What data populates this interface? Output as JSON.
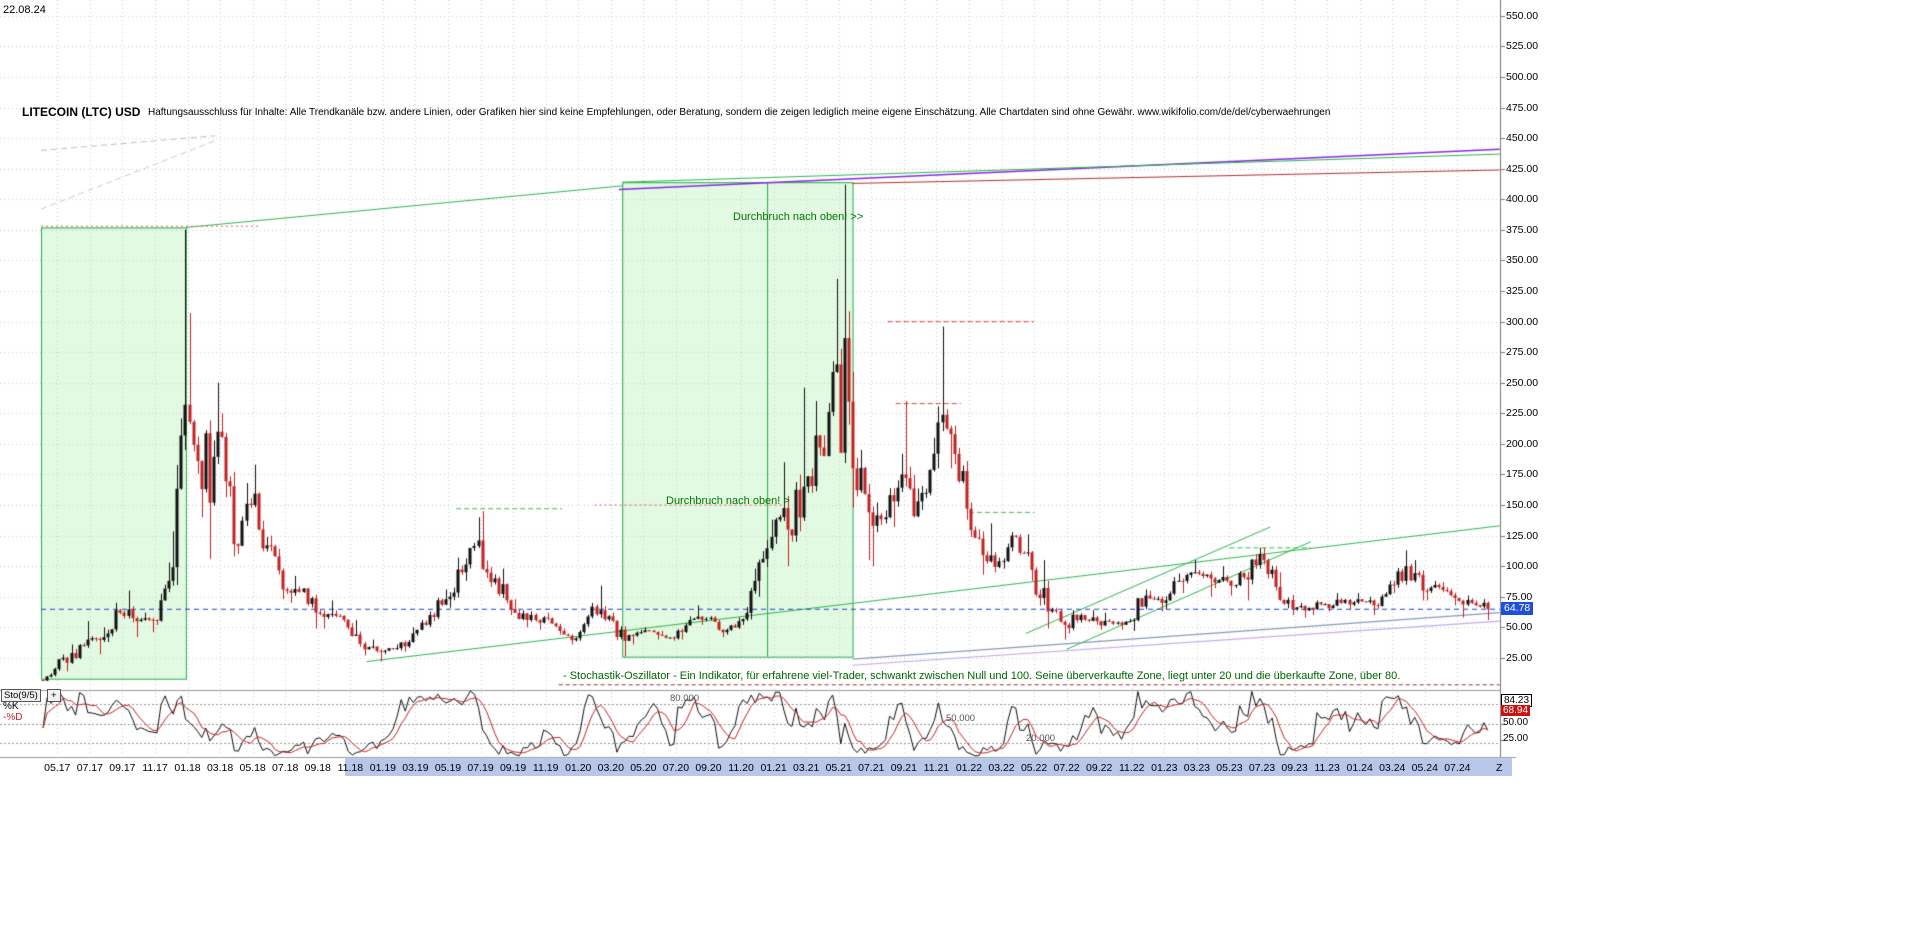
{
  "header": {
    "date": "22.08.24",
    "title": "LITECOIN (LTC) USD",
    "disclaimer": "Haftungsausschluss für Inhalte: Alle Trendkanäle bzw. andere Linien, oder Grafiken hier sind keine Empfehlungen, oder Beratung, sondern die zeigen lediglich meine eigene Einschätzung. Alle Chartdaten sind ohne Gewähr.  www.wikifolio.com/de/del/cyberwaehrungen"
  },
  "price_axis": {
    "current_price": "64.78",
    "ticks": [
      "550.00",
      "525.00",
      "500.00",
      "475.00",
      "450.00",
      "425.00",
      "400.00",
      "375.00",
      "350.00",
      "325.00",
      "300.00",
      "275.00",
      "250.00",
      "225.00",
      "200.00",
      "175.00",
      "150.00",
      "125.00",
      "100.00",
      "75.00",
      "50.00",
      "25.00"
    ]
  },
  "chart_data": {
    "type": "candlestick",
    "symbol": "LITECOIN (LTC) USD",
    "timeframe": "monthly, 2017-04 to 2024-08 (rendered as weekly candles)",
    "month_start": "2017-04",
    "price_range_visible": [
      25,
      550
    ],
    "price_grid_step": 25,
    "current_close": 64.78,
    "z_label": "Z",
    "candle_up_color": "#111111",
    "candle_down_color": "#c22222",
    "ohlc": [
      [
        7,
        17,
        6,
        16
      ],
      [
        16,
        36,
        14,
        29
      ],
      [
        29,
        55,
        24,
        40
      ],
      [
        40,
        50,
        28,
        42
      ],
      [
        42,
        70,
        38,
        62
      ],
      [
        62,
        80,
        42,
        55
      ],
      [
        55,
        62,
        46,
        56
      ],
      [
        56,
        103,
        52,
        88
      ],
      [
        88,
        375,
        84,
        232
      ],
      [
        232,
        307,
        140,
        163
      ],
      [
        163,
        250,
        106,
        210
      ],
      [
        210,
        225,
        108,
        118
      ],
      [
        118,
        168,
        110,
        150
      ],
      [
        150,
        183,
        112,
        117
      ],
      [
        117,
        125,
        73,
        81
      ],
      [
        81,
        92,
        70,
        79
      ],
      [
        79,
        82,
        49,
        62
      ],
      [
        62,
        72,
        49,
        61
      ],
      [
        61,
        64,
        48,
        50
      ],
      [
        50,
        56,
        27,
        32
      ],
      [
        32,
        40,
        22,
        30
      ],
      [
        30,
        36,
        28,
        33
      ],
      [
        33,
        50,
        30,
        45
      ],
      [
        45,
        63,
        43,
        60
      ],
      [
        60,
        81,
        55,
        73
      ],
      [
        73,
        107,
        66,
        95
      ],
      [
        95,
        140,
        88,
        121
      ],
      [
        121,
        145,
        83,
        90
      ],
      [
        90,
        98,
        60,
        65
      ],
      [
        65,
        73,
        50,
        56
      ],
      [
        56,
        63,
        48,
        58
      ],
      [
        58,
        62,
        44,
        47
      ],
      [
        47,
        49,
        36,
        41
      ],
      [
        41,
        70,
        39,
        67
      ],
      [
        67,
        84,
        55,
        59
      ],
      [
        59,
        62,
        26,
        39
      ],
      [
        39,
        48,
        36,
        46
      ],
      [
        46,
        50,
        40,
        44
      ],
      [
        44,
        47,
        39,
        41
      ],
      [
        41,
        59,
        40,
        56
      ],
      [
        56,
        68,
        52,
        57
      ],
      [
        57,
        59,
        42,
        46
      ],
      [
        46,
        58,
        44,
        55
      ],
      [
        55,
        98,
        52,
        88
      ],
      [
        88,
        138,
        75,
        124
      ],
      [
        124,
        185,
        100,
        130
      ],
      [
        130,
        246,
        120,
        165
      ],
      [
        165,
        235,
        160,
        197
      ],
      [
        197,
        335,
        190,
        265
      ],
      [
        265,
        412,
        148,
        180
      ],
      [
        180,
        195,
        105,
        144
      ],
      [
        144,
        152,
        100,
        140
      ],
      [
        140,
        192,
        132,
        175
      ],
      [
        175,
        235,
        140,
        153
      ],
      [
        153,
        205,
        146,
        192
      ],
      [
        192,
        296,
        180,
        208
      ],
      [
        208,
        215,
        138,
        147
      ],
      [
        147,
        152,
        93,
        109
      ],
      [
        109,
        135,
        95,
        104
      ],
      [
        104,
        128,
        98,
        124
      ],
      [
        124,
        126,
        88,
        97
      ],
      [
        97,
        105,
        49,
        63
      ],
      [
        63,
        66,
        40,
        52
      ],
      [
        52,
        64,
        45,
        60
      ],
      [
        60,
        64,
        52,
        55
      ],
      [
        55,
        62,
        48,
        53
      ],
      [
        53,
        57,
        48,
        55
      ],
      [
        55,
        81,
        47,
        76
      ],
      [
        76,
        80,
        63,
        70
      ],
      [
        70,
        94,
        65,
        88
      ],
      [
        88,
        105,
        78,
        95
      ],
      [
        95,
        97,
        75,
        90
      ],
      [
        90,
        100,
        82,
        88
      ],
      [
        88,
        96,
        76,
        91
      ],
      [
        91,
        115,
        72,
        110
      ],
      [
        110,
        115,
        80,
        83
      ],
      [
        83,
        95,
        60,
        65
      ],
      [
        65,
        70,
        58,
        66
      ],
      [
        66,
        72,
        60,
        69
      ],
      [
        69,
        78,
        63,
        70
      ],
      [
        70,
        78,
        64,
        73
      ],
      [
        73,
        75,
        60,
        68
      ],
      [
        68,
        88,
        65,
        85
      ],
      [
        85,
        113,
        78,
        100
      ],
      [
        100,
        105,
        72,
        80
      ],
      [
        80,
        88,
        72,
        83
      ],
      [
        83,
        87,
        68,
        74
      ],
      [
        74,
        76,
        58,
        70
      ],
      [
        70,
        73,
        56,
        64.78
      ]
    ],
    "x_ticks": [
      {
        "label": "05.17",
        "m": 1,
        "hl": false
      },
      {
        "label": "07.17",
        "m": 3,
        "hl": false
      },
      {
        "label": "09.17",
        "m": 5,
        "hl": false
      },
      {
        "label": "11.17",
        "m": 7,
        "hl": false
      },
      {
        "label": "01.18",
        "m": 9,
        "hl": false
      },
      {
        "label": "03.18",
        "m": 11,
        "hl": false
      },
      {
        "label": "05.18",
        "m": 13,
        "hl": false
      },
      {
        "label": "07.18",
        "m": 15,
        "hl": false
      },
      {
        "label": "09.18",
        "m": 17,
        "hl": false
      },
      {
        "label": "11.18",
        "m": 19,
        "hl": true
      },
      {
        "label": "01.19",
        "m": 21,
        "hl": true
      },
      {
        "label": "03.19",
        "m": 23,
        "hl": true
      },
      {
        "label": "05.19",
        "m": 25,
        "hl": true
      },
      {
        "label": "07.19",
        "m": 27,
        "hl": true
      },
      {
        "label": "09.19",
        "m": 29,
        "hl": true
      },
      {
        "label": "11.19",
        "m": 31,
        "hl": true
      },
      {
        "label": "01.20",
        "m": 33,
        "hl": true
      },
      {
        "label": "03.20",
        "m": 35,
        "hl": true
      },
      {
        "label": "05.20",
        "m": 37,
        "hl": true
      },
      {
        "label": "07.20",
        "m": 39,
        "hl": true
      },
      {
        "label": "09.20",
        "m": 41,
        "hl": true
      },
      {
        "label": "11.20",
        "m": 43,
        "hl": true
      },
      {
        "label": "01.21",
        "m": 45,
        "hl": true
      },
      {
        "label": "03.21",
        "m": 47,
        "hl": true
      },
      {
        "label": "05.21",
        "m": 49,
        "hl": true
      },
      {
        "label": "07.21",
        "m": 51,
        "hl": true
      },
      {
        "label": "09.21",
        "m": 53,
        "hl": true
      },
      {
        "label": "11.21",
        "m": 55,
        "hl": true
      },
      {
        "label": "01.22",
        "m": 57,
        "hl": true
      },
      {
        "label": "03.22",
        "m": 59,
        "hl": true
      },
      {
        "label": "05.22",
        "m": 61,
        "hl": true
      },
      {
        "label": "07.22",
        "m": 63,
        "hl": true
      },
      {
        "label": "09.22",
        "m": 65,
        "hl": true
      },
      {
        "label": "11.22",
        "m": 67,
        "hl": true
      },
      {
        "label": "01.23",
        "m": 69,
        "hl": true
      },
      {
        "label": "03.23",
        "m": 71,
        "hl": true
      },
      {
        "label": "05.23",
        "m": 73,
        "hl": true
      },
      {
        "label": "07.23",
        "m": 75,
        "hl": true
      },
      {
        "label": "09.23",
        "m": 77,
        "hl": true
      },
      {
        "label": "11.23",
        "m": 79,
        "hl": true
      },
      {
        "label": "01.24",
        "m": 81,
        "hl": true
      },
      {
        "label": "03.24",
        "m": 83,
        "hl": true
      },
      {
        "label": "05.24",
        "m": 85,
        "hl": true
      },
      {
        "label": "07.24",
        "m": 87,
        "hl": true
      }
    ]
  },
  "annotations": {
    "breakout_upper": "Durchbruch nach oben! >>",
    "breakout_lower": "Durchbruch nach oben! >",
    "regions": [
      {
        "m1": 0,
        "m2": 8.9,
        "p1": 8,
        "p2": 377,
        "fill": "rgba(140,230,140,0.25)",
        "border": "#22aa44"
      },
      {
        "m1": 35.7,
        "m2": 49.85,
        "p1": 26,
        "p2": 414,
        "fill": "rgba(140,230,140,0.25)",
        "border": "#22aa44",
        "inner_m": 44.6
      }
    ],
    "lines": [
      {
        "m1": 35.5,
        "p1": 408,
        "m2": 89.6,
        "p2": 441,
        "color": "#8a2be2",
        "w": 1.5
      },
      {
        "m1": 8.9,
        "p1": 377,
        "m2": 35.7,
        "p2": 411,
        "color": "#2db84d",
        "w": 1
      },
      {
        "m1": 35.7,
        "p1": 414,
        "m2": 89.6,
        "p2": 437,
        "color": "#2db84d",
        "w": 1
      },
      {
        "m1": 49.85,
        "p1": 413,
        "m2": 89.6,
        "p2": 424,
        "color": "#b03030",
        "w": 1
      },
      {
        "m1": 20,
        "p1": 22,
        "m2": 89.6,
        "p2": 133,
        "color": "#2db84d",
        "w": 1
      },
      {
        "m1": 60.5,
        "p1": 45,
        "m2": 75.5,
        "p2": 132,
        "color": "#2db84d",
        "w": 1
      },
      {
        "m1": 63,
        "p1": 32,
        "m2": 78,
        "p2": 120,
        "color": "#2db84d",
        "w": 1
      },
      {
        "m1": 49.85,
        "p1": 24,
        "m2": 89.6,
        "p2": 62,
        "color": "#8899bb",
        "w": 1.2
      },
      {
        "m1": 49.85,
        "p1": 19,
        "m2": 89.6,
        "p2": 55,
        "color": "#c3a8f0",
        "w": 1.2
      },
      {
        "m1": 0,
        "p1": 440,
        "m2": 10.7,
        "p2": 452,
        "color": "#c0c0c0",
        "w": 1,
        "dash": [
          6,
          4
        ]
      },
      {
        "m1": 0,
        "p1": 392,
        "m2": 10.7,
        "p2": 448,
        "color": "#cccccc",
        "w": 1,
        "dash": [
          6,
          4
        ]
      },
      {
        "m1": 0,
        "p1": 378,
        "m2": 13.5,
        "p2": 378,
        "color": "#ee6666",
        "w": 1,
        "dash": [
          2,
          3
        ]
      },
      {
        "m1": 34,
        "p1": 150,
        "m2": 45.5,
        "p2": 150,
        "color": "#ee5555",
        "w": 1,
        "dash": [
          2,
          3
        ]
      },
      {
        "m1": 52,
        "p1": 300,
        "m2": 61,
        "p2": 300,
        "color": "#ee4444",
        "w": 1,
        "dash": [
          5,
          3
        ]
      },
      {
        "m1": 52.5,
        "p1": 233,
        "m2": 56.5,
        "p2": 233,
        "color": "#ee4444",
        "w": 1,
        "dash": [
          5,
          3
        ]
      },
      {
        "m1": 25.5,
        "p1": 147,
        "m2": 32,
        "p2": 147,
        "color": "#44bb55",
        "w": 1,
        "dash": [
          5,
          3
        ]
      },
      {
        "m1": 57,
        "p1": 144,
        "m2": 61,
        "p2": 144,
        "color": "#44bb55",
        "w": 1,
        "dash": [
          5,
          3
        ]
      },
      {
        "m1": 73,
        "p1": 115,
        "m2": 78,
        "p2": 115,
        "color": "#44bb55",
        "w": 1,
        "dash": [
          5,
          3
        ]
      },
      {
        "m1": 31.8,
        "p1": 3,
        "m2": 89.6,
        "p2": 3,
        "color": "#993333",
        "w": 1,
        "dash": [
          4,
          3
        ]
      },
      {
        "m1": 0,
        "p1": 64.78,
        "m2": 89.6,
        "p2": 64.78,
        "color": "#2244cc",
        "w": 1,
        "dash": [
          5,
          4
        ]
      }
    ]
  },
  "oscillator": {
    "name": "Sto(9/5)",
    "plus": "+",
    "k_label": "%K",
    "d_label": "-%D",
    "k_period": 9,
    "d_period": 5,
    "k_color": "#111111",
    "d_color": "#cc2222",
    "levels": [
      {
        "value": 80,
        "label": "80.000"
      },
      {
        "value": 50,
        "label": "50.000"
      },
      {
        "value": 20,
        "label": "20.000"
      }
    ],
    "right_values": [
      {
        "label": "84.23",
        "style": "boxed"
      },
      {
        "label": "68.94",
        "style": "red"
      },
      {
        "label": "50.00",
        "style": "plain"
      },
      {
        "label": "25.00",
        "style": "plain"
      }
    ],
    "description": "- Stochastik-Oszillator - Ein Indikator, für erfahrene viel-Trader, schwankt zwischen Null und 100. Seine überverkaufte Zone, liegt unter 20 und die überkaufte Zone, über 80."
  }
}
